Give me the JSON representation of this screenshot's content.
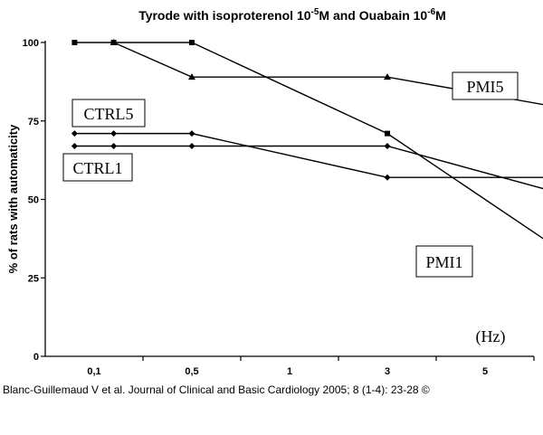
{
  "chart_data": {
    "type": "line",
    "title": {
      "main": "Tyrode with isoproterenol 10",
      "exp1": "-5",
      "mid": "M and Ouabain 10",
      "exp2": "-6",
      "end": "M"
    },
    "xlabel": "(Hz)",
    "ylabel": "% of rats with automaticity",
    "x_tick_labels": [
      "0,1",
      "0,5",
      "1",
      "3",
      "5"
    ],
    "y_ticks": [
      0,
      25,
      50,
      75,
      100
    ],
    "ylim": [
      0,
      100
    ],
    "grid": false,
    "x": [
      0.3,
      0.7,
      1.5,
      3.5,
      5.5
    ],
    "series": [
      {
        "name": "PMI5",
        "marker": "triangle",
        "values": [
          null,
          100,
          89,
          89,
          78
        ]
      },
      {
        "name": "PMI1",
        "marker": "square",
        "values": [
          100,
          100,
          100,
          71,
          29
        ]
      },
      {
        "name": "CTRL5",
        "marker": "diamond",
        "values": [
          71,
          71,
          71,
          57,
          57
        ]
      },
      {
        "name": "CTRL1",
        "marker": "diamond",
        "values": [
          67,
          67,
          67,
          67,
          50
        ]
      }
    ]
  },
  "credit": "Blanc-Guillemaud V et al. Journal of Clinical and Basic Cardiology 2005; 8 (1-4): 23-28 ©"
}
